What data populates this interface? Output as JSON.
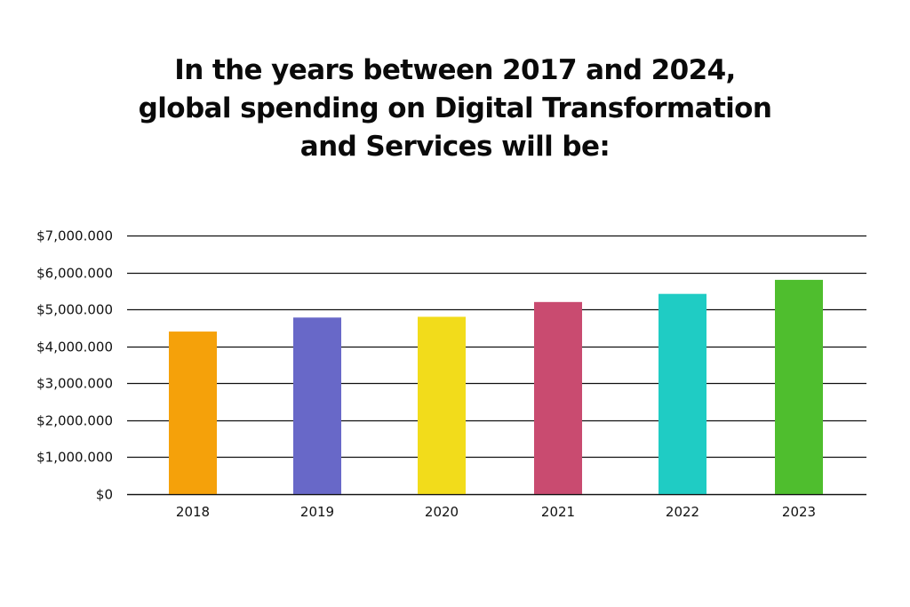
{
  "chart_data": {
    "type": "bar",
    "title_lines": [
      "In the years between 2017 and 2024,",
      "global spending on Digital Transformation",
      "and Services will be:"
    ],
    "title": "In the years between 2017 and 2024, global spending on Digital Transformation and Services will be:",
    "xlabel": "",
    "ylabel": "",
    "categories": [
      "2018",
      "2019",
      "2020",
      "2021",
      "2022",
      "2023"
    ],
    "values": [
      4400000,
      4780000,
      4800000,
      5200000,
      5420000,
      5800000
    ],
    "colors": [
      "#F5A10A",
      "#6868C8",
      "#F2DC1B",
      "#C94B70",
      "#1FCCC4",
      "#4FBE2E"
    ],
    "ylim": [
      0,
      7000000
    ],
    "yticks": [
      0,
      1000000,
      2000000,
      3000000,
      4000000,
      5000000,
      6000000,
      7000000
    ],
    "ytick_labels": [
      "$0",
      "$1,000.000",
      "$2,000.000",
      "$3,000.000",
      "$4,000.000",
      "$5,000.000",
      "$6,000.000",
      "$7,000.000"
    ],
    "grid": true,
    "legend": "none"
  }
}
